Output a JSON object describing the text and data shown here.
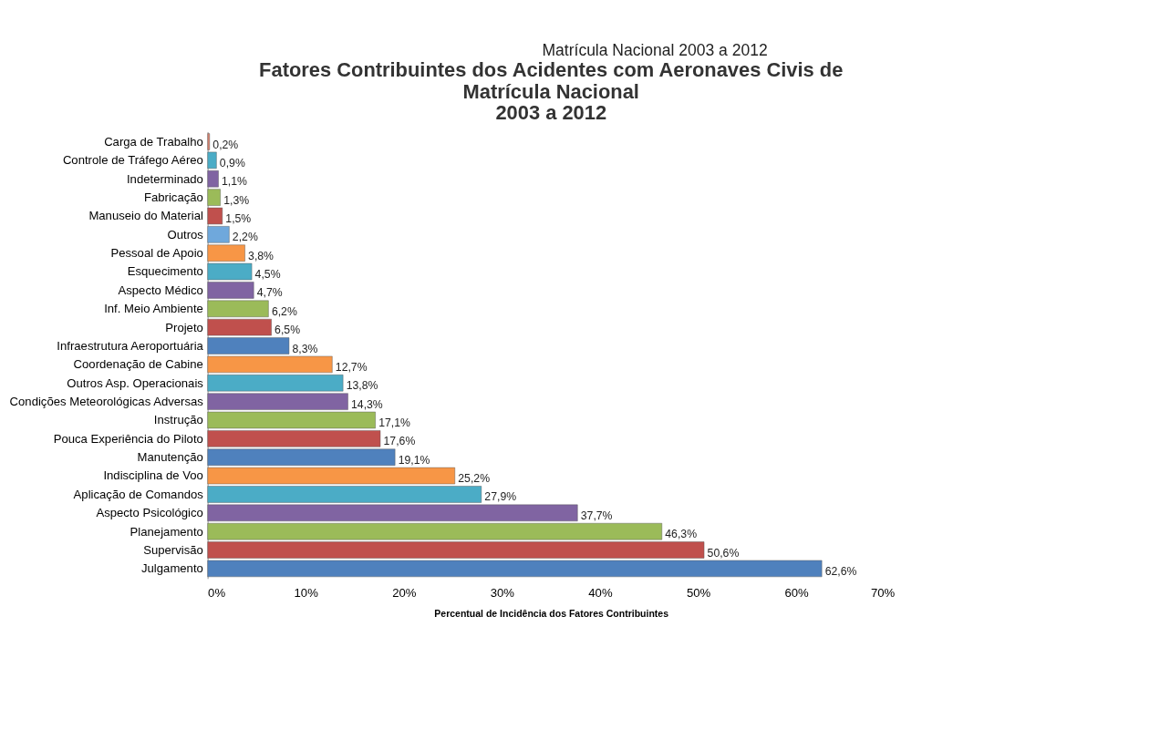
{
  "chart_data": {
    "type": "bar",
    "orientation": "horizontal",
    "title": "Fatores Contribuintes dos Acidentes com Aeronaves Civis de\nMatrícula Nacional\n2003 a 2012",
    "annotations": [
      "Matrícula Nacional 2003 a 2012"
    ],
    "xlabel": "Percentual  de Incidência dos Fatores Contribuintes",
    "categories": [
      "Carga de Trabalho",
      "Controle de Tráfego Aéreo",
      "Indeterminado",
      "Fabricação",
      "Manuseio do Material",
      "Outros",
      "Pessoal de Apoio",
      "Esquecimento",
      "Aspecto Médico",
      "Inf. Meio Ambiente",
      "Projeto",
      "Infraestrutura Aeroportuária",
      "Coordenação de Cabine",
      "Outros Asp. Operacionais",
      "Condições Meteorológicas Adversas",
      "Instrução",
      "Pouca Experiência do Piloto",
      "Manutenção",
      "Indisciplina de Voo",
      "Aplicação de Comandos",
      "Aspecto Psicológico",
      "Planejamento",
      "Supervisão",
      "Julgamento"
    ],
    "values": [
      0.2,
      0.9,
      1.1,
      1.3,
      1.5,
      2.2,
      3.8,
      4.5,
      4.7,
      6.2,
      6.5,
      8.3,
      12.7,
      13.8,
      14.3,
      17.1,
      17.6,
      19.1,
      25.2,
      27.9,
      37.7,
      46.3,
      50.6,
      62.6
    ],
    "value_labels": [
      "0,2%",
      "0,9%",
      "1,1%",
      "1,3%",
      "1,5%",
      "2,2%",
      "3,8%",
      "4,5%",
      "4,7%",
      "6,2%",
      "6,5%",
      "8,3%",
      "12,7%",
      "13,8%",
      "14,3%",
      "17,1%",
      "17,6%",
      "19,1%",
      "25,2%",
      "27,9%",
      "37,7%",
      "46,3%",
      "50,6%",
      "62,6%"
    ],
    "colors": [
      "#d9826e",
      "#4bacc6",
      "#8064a2",
      "#9bbb59",
      "#c0504d",
      "#6fa8dc",
      "#f79646",
      "#4bacc6",
      "#8064a2",
      "#9bbb59",
      "#c0504d",
      "#4f81bd",
      "#f79646",
      "#4bacc6",
      "#8064a2",
      "#9bbb59",
      "#c0504d",
      "#4f81bd",
      "#f79646",
      "#4bacc6",
      "#8064a2",
      "#9bbb59",
      "#c0504d",
      "#4f81bd"
    ],
    "xlim": [
      0,
      70
    ],
    "xticks": [
      {
        "value": 0,
        "label": "0%"
      },
      {
        "value": 10,
        "label": "10%"
      },
      {
        "value": 20,
        "label": "20%"
      },
      {
        "value": 30,
        "label": "30%"
      },
      {
        "value": 40,
        "label": "40%"
      },
      {
        "value": 50,
        "label": "50%"
      },
      {
        "value": 60,
        "label": "60%"
      },
      {
        "value": 70,
        "label": "70%"
      }
    ],
    "grid": false,
    "legend": false
  }
}
